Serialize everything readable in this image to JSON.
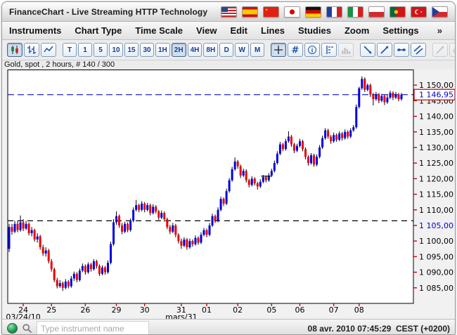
{
  "window": {
    "title": "FinanceChart - Live Streaming HTTP Technology"
  },
  "flags": [
    "usa",
    "spain",
    "china",
    "japan",
    "germany",
    "france",
    "italy",
    "poland",
    "portugal",
    "turkey",
    "czech"
  ],
  "menu": {
    "items": [
      "Instruments",
      "Chart Type",
      "Time Scale",
      "View",
      "Edit",
      "Lines",
      "Studies",
      "Zoom",
      "Settings"
    ],
    "overflow": "»"
  },
  "toolbar": {
    "chart_type_buttons": [
      {
        "name": "candlestick-chart-button",
        "icon": "candles",
        "state": "active"
      },
      {
        "name": "ohlc-chart-button",
        "icon": "ohlc",
        "state": "normal"
      },
      {
        "name": "line-chart-button",
        "icon": "linechart",
        "state": "normal"
      }
    ],
    "timeframe_buttons": [
      {
        "label": "T"
      },
      {
        "label": "1"
      },
      {
        "label": "5"
      },
      {
        "label": "10"
      },
      {
        "label": "15"
      },
      {
        "label": "30"
      },
      {
        "label": "1H"
      },
      {
        "label": "2H",
        "state": "active"
      },
      {
        "label": "4H"
      },
      {
        "label": "8H"
      },
      {
        "label": "D"
      },
      {
        "label": "W"
      },
      {
        "label": "M"
      }
    ],
    "tool_buttons": [
      {
        "name": "crosshair-button",
        "icon": "crosshair",
        "state": "active"
      },
      {
        "name": "grid-button",
        "icon": "grid",
        "state": "normal"
      },
      {
        "name": "info-button",
        "icon": "info",
        "state": "normal"
      },
      {
        "name": "price-levels-button",
        "icon": "levels",
        "state": "normal"
      },
      {
        "name": "volume-histogram-button",
        "icon": "volume",
        "state": "disabled"
      }
    ],
    "draw_buttons": [
      {
        "name": "draw-trendline-down-button",
        "icon": "trend-down",
        "state": "normal"
      },
      {
        "name": "draw-trendline-up-button",
        "icon": "trend-up",
        "state": "normal"
      },
      {
        "name": "draw-horizontal-line-button",
        "icon": "trend-horizontal",
        "state": "normal"
      },
      {
        "name": "draw-channel-button",
        "icon": "trend-channel",
        "state": "normal"
      }
    ],
    "edit_buttons": [
      {
        "name": "edit-line-button",
        "icon": "trend-up",
        "state": "disabled"
      },
      {
        "name": "eraser-button",
        "icon": "eraser",
        "state": "disabled"
      },
      {
        "name": "pin-button",
        "icon": "pin",
        "state": "normal"
      }
    ],
    "overflow": "»"
  },
  "chart": {
    "instrument_label": "Gold, spot , 2 hours, # 140 / 300"
  },
  "chart_data": {
    "type": "candlestick",
    "title": "Gold, spot , 2 hours, # 140 / 300",
    "ylim": [
      1080,
      1155
    ],
    "yticks": [
      {
        "value": 1150,
        "label": "1 150,00"
      },
      {
        "value": 1145,
        "label": "1 145,00"
      },
      {
        "value": 1140,
        "label": "1 140,00"
      },
      {
        "value": 1135,
        "label": "1 135,00"
      },
      {
        "value": 1130,
        "label": "1 130,00"
      },
      {
        "value": 1125,
        "label": "1 125,00"
      },
      {
        "value": 1120,
        "label": "1 120,00"
      },
      {
        "value": 1115,
        "label": "1 115,00"
      },
      {
        "value": 1110,
        "label": "1 110,00"
      },
      {
        "value": 1105,
        "label": "1 105,00",
        "highlight": true
      },
      {
        "value": 1100,
        "label": "1 100,00"
      },
      {
        "value": 1095,
        "label": "1 095,00"
      },
      {
        "value": 1090,
        "label": "1 090,00"
      },
      {
        "value": 1085,
        "label": "1 085,00"
      }
    ],
    "price_line": {
      "value": 1146.95,
      "label": "1 146,95"
    },
    "support_line": {
      "value": 1106.5
    },
    "marker": {
      "index": 91,
      "value": 1120.8
    },
    "x_labels": [
      {
        "label": "24",
        "index": 5
      },
      {
        "label": "25",
        "index": 15
      },
      {
        "label": "26",
        "index": 27
      },
      {
        "label": "29",
        "index": 38
      },
      {
        "label": "30",
        "index": 48
      },
      {
        "label": "31",
        "index": 61
      },
      {
        "label": "01",
        "index": 70
      },
      {
        "label": "02",
        "index": 81
      },
      {
        "label": "05",
        "index": 93
      },
      {
        "label": "06",
        "index": 103
      },
      {
        "label": "07",
        "index": 115
      },
      {
        "label": "08",
        "index": 124
      }
    ],
    "x_sublabels": [
      {
        "label": "03/24/10",
        "index": 5
      },
      {
        "label": "mars/31",
        "index": 61
      }
    ],
    "colors": {
      "up": "#0000e0",
      "down": "#ee0000",
      "wick": "#000000",
      "price_line": "#2222cc",
      "support_line": "#000000",
      "tick": "#cc0000"
    },
    "candles": [
      [
        1097.5,
        1105.5,
        1096.5,
        1104.5
      ],
      [
        1104.5,
        1105.5,
        1102.0,
        1103.0
      ],
      [
        1103.0,
        1106.5,
        1102.5,
        1105.5
      ],
      [
        1105.5,
        1106.5,
        1102.8,
        1103.5
      ],
      [
        1103.5,
        1108.2,
        1103.0,
        1106.0
      ],
      [
        1106.0,
        1107.0,
        1103.2,
        1104.0
      ],
      [
        1104.0,
        1106.5,
        1103.5,
        1105.5
      ],
      [
        1105.5,
        1106.0,
        1101.8,
        1102.5
      ],
      [
        1102.5,
        1104.5,
        1101.5,
        1103.5
      ],
      [
        1103.5,
        1104.0,
        1099.8,
        1100.5
      ],
      [
        1100.5,
        1102.5,
        1099.5,
        1101.5
      ],
      [
        1101.5,
        1102.0,
        1097.2,
        1098.0
      ],
      [
        1098.0,
        1098.8,
        1095.2,
        1096.0
      ],
      [
        1096.0,
        1098.0,
        1095.0,
        1097.0
      ],
      [
        1097.0,
        1097.5,
        1092.8,
        1093.5
      ],
      [
        1093.5,
        1094.2,
        1090.2,
        1091.0
      ],
      [
        1091.0,
        1091.5,
        1086.8,
        1087.5
      ],
      [
        1087.5,
        1088.2,
        1084.8,
        1085.5
      ],
      [
        1085.5,
        1087.5,
        1085.0,
        1086.5
      ],
      [
        1086.5,
        1087.0,
        1084.0,
        1085.0
      ],
      [
        1085.0,
        1087.8,
        1084.5,
        1087.0
      ],
      [
        1087.0,
        1087.5,
        1084.8,
        1085.5
      ],
      [
        1085.5,
        1088.8,
        1085.0,
        1088.0
      ],
      [
        1088.0,
        1090.2,
        1087.2,
        1089.5
      ],
      [
        1089.5,
        1090.0,
        1086.8,
        1087.5
      ],
      [
        1087.5,
        1091.2,
        1087.0,
        1090.5
      ],
      [
        1090.5,
        1092.8,
        1090.0,
        1092.0
      ],
      [
        1092.0,
        1092.5,
        1089.2,
        1090.0
      ],
      [
        1090.0,
        1093.2,
        1089.5,
        1092.5
      ],
      [
        1092.5,
        1093.0,
        1090.2,
        1091.0
      ],
      [
        1091.0,
        1094.2,
        1090.5,
        1093.5
      ],
      [
        1093.5,
        1094.0,
        1091.2,
        1092.0
      ],
      [
        1092.0,
        1092.5,
        1088.8,
        1089.5
      ],
      [
        1089.5,
        1092.2,
        1089.0,
        1091.5
      ],
      [
        1091.5,
        1092.0,
        1089.2,
        1090.0
      ],
      [
        1090.0,
        1093.8,
        1089.5,
        1093.0
      ],
      [
        1093.0,
        1099.8,
        1092.5,
        1099.0
      ],
      [
        1099.0,
        1107.0,
        1098.5,
        1106.0
      ],
      [
        1106.0,
        1109.5,
        1105.2,
        1108.0
      ],
      [
        1108.0,
        1108.5,
        1104.2,
        1105.0
      ],
      [
        1105.0,
        1105.8,
        1102.2,
        1103.0
      ],
      [
        1103.0,
        1106.2,
        1102.5,
        1105.5
      ],
      [
        1105.5,
        1106.0,
        1102.8,
        1103.5
      ],
      [
        1103.5,
        1107.2,
        1103.0,
        1106.5
      ],
      [
        1106.5,
        1110.8,
        1106.0,
        1110.0
      ],
      [
        1110.0,
        1113.2,
        1109.5,
        1111.5
      ],
      [
        1111.5,
        1112.0,
        1109.2,
        1110.0
      ],
      [
        1110.0,
        1112.8,
        1109.5,
        1112.0
      ],
      [
        1112.0,
        1112.5,
        1109.2,
        1110.0
      ],
      [
        1110.0,
        1112.2,
        1109.5,
        1111.5
      ],
      [
        1111.5,
        1112.0,
        1108.2,
        1109.0
      ],
      [
        1109.0,
        1111.8,
        1108.5,
        1111.0
      ],
      [
        1111.0,
        1111.5,
        1108.8,
        1109.5
      ],
      [
        1109.5,
        1110.0,
        1106.8,
        1107.5
      ],
      [
        1107.5,
        1109.8,
        1107.0,
        1109.0
      ],
      [
        1109.0,
        1109.5,
        1106.2,
        1107.0
      ],
      [
        1107.0,
        1107.5,
        1103.8,
        1104.5
      ],
      [
        1104.5,
        1105.2,
        1102.2,
        1103.0
      ],
      [
        1103.0,
        1105.8,
        1102.5,
        1105.0
      ],
      [
        1105.0,
        1105.5,
        1101.2,
        1102.0
      ],
      [
        1102.0,
        1102.5,
        1099.2,
        1100.0
      ],
      [
        1100.0,
        1100.8,
        1097.5,
        1098.5
      ],
      [
        1098.5,
        1101.2,
        1098.0,
        1100.5
      ],
      [
        1100.5,
        1101.0,
        1097.2,
        1098.0
      ],
      [
        1098.0,
        1100.8,
        1097.5,
        1100.0
      ],
      [
        1100.0,
        1100.5,
        1098.2,
        1099.0
      ],
      [
        1099.0,
        1101.8,
        1098.5,
        1101.0
      ],
      [
        1101.0,
        1101.5,
        1098.8,
        1099.5
      ],
      [
        1099.5,
        1102.8,
        1099.0,
        1102.0
      ],
      [
        1102.0,
        1104.2,
        1101.5,
        1103.5
      ],
      [
        1103.5,
        1104.0,
        1101.2,
        1102.0
      ],
      [
        1102.0,
        1105.8,
        1101.5,
        1105.0
      ],
      [
        1105.0,
        1108.8,
        1104.5,
        1108.0
      ],
      [
        1108.0,
        1108.5,
        1105.8,
        1106.5
      ],
      [
        1106.5,
        1110.8,
        1106.0,
        1110.0
      ],
      [
        1110.0,
        1114.2,
        1109.5,
        1113.5
      ],
      [
        1113.5,
        1114.0,
        1111.2,
        1112.0
      ],
      [
        1112.0,
        1116.8,
        1111.5,
        1116.0
      ],
      [
        1116.0,
        1120.2,
        1115.5,
        1119.5
      ],
      [
        1119.5,
        1123.8,
        1119.0,
        1123.0
      ],
      [
        1123.0,
        1126.8,
        1122.5,
        1125.5
      ],
      [
        1125.5,
        1126.0,
        1123.2,
        1124.0
      ],
      [
        1124.0,
        1124.5,
        1120.2,
        1121.0
      ],
      [
        1121.0,
        1123.2,
        1120.5,
        1122.5
      ],
      [
        1122.5,
        1123.0,
        1118.8,
        1119.5
      ],
      [
        1119.5,
        1120.0,
        1117.2,
        1118.0
      ],
      [
        1118.0,
        1120.8,
        1117.5,
        1120.0
      ],
      [
        1120.0,
        1120.5,
        1117.8,
        1118.5
      ],
      [
        1118.5,
        1119.0,
        1116.5,
        1117.5
      ],
      [
        1117.5,
        1119.8,
        1117.0,
        1119.0
      ],
      [
        1119.0,
        1121.2,
        1118.5,
        1120.5
      ],
      [
        1120.5,
        1121.0,
        1118.8,
        1119.5
      ],
      [
        1119.5,
        1121.8,
        1119.0,
        1121.0
      ],
      [
        1121.0,
        1123.2,
        1120.5,
        1122.5
      ],
      [
        1122.5,
        1125.8,
        1122.0,
        1125.0
      ],
      [
        1125.0,
        1128.8,
        1124.5,
        1128.0
      ],
      [
        1128.0,
        1131.8,
        1127.5,
        1131.0
      ],
      [
        1131.0,
        1131.5,
        1128.8,
        1129.5
      ],
      [
        1129.5,
        1132.8,
        1129.0,
        1132.0
      ],
      [
        1132.0,
        1135.2,
        1131.5,
        1133.5
      ],
      [
        1133.5,
        1134.0,
        1130.2,
        1131.0
      ],
      [
        1131.0,
        1131.5,
        1128.2,
        1129.0
      ],
      [
        1129.0,
        1131.2,
        1128.5,
        1130.5
      ],
      [
        1130.5,
        1132.8,
        1130.0,
        1132.0
      ],
      [
        1132.0,
        1132.5,
        1128.8,
        1129.5
      ],
      [
        1129.5,
        1130.0,
        1126.2,
        1127.0
      ],
      [
        1127.0,
        1127.5,
        1124.2,
        1125.0
      ],
      [
        1125.0,
        1128.2,
        1124.5,
        1127.5
      ],
      [
        1127.5,
        1128.0,
        1123.8,
        1124.5
      ],
      [
        1124.5,
        1127.8,
        1124.0,
        1127.0
      ],
      [
        1127.0,
        1130.8,
        1126.5,
        1130.0
      ],
      [
        1130.0,
        1133.8,
        1129.5,
        1133.0
      ],
      [
        1133.0,
        1136.2,
        1132.5,
        1135.5
      ],
      [
        1135.5,
        1136.0,
        1132.8,
        1133.5
      ],
      [
        1133.5,
        1134.0,
        1131.2,
        1132.0
      ],
      [
        1132.0,
        1134.8,
        1131.5,
        1134.0
      ],
      [
        1134.0,
        1134.5,
        1131.8,
        1132.5
      ],
      [
        1132.5,
        1135.2,
        1132.0,
        1134.5
      ],
      [
        1134.5,
        1135.0,
        1132.2,
        1133.0
      ],
      [
        1133.0,
        1135.8,
        1132.5,
        1135.0
      ],
      [
        1135.0,
        1135.5,
        1132.8,
        1133.5
      ],
      [
        1133.5,
        1136.2,
        1133.0,
        1135.5
      ],
      [
        1135.5,
        1137.2,
        1135.0,
        1136.5
      ],
      [
        1136.5,
        1143.8,
        1136.0,
        1143.0
      ],
      [
        1143.0,
        1149.5,
        1142.5,
        1149.0
      ],
      [
        1149.0,
        1152.8,
        1148.5,
        1152.0
      ],
      [
        1152.0,
        1152.5,
        1147.8,
        1148.5
      ],
      [
        1148.5,
        1150.5,
        1148.0,
        1150.0
      ],
      [
        1150.0,
        1150.5,
        1146.2,
        1147.0
      ],
      [
        1147.0,
        1147.5,
        1143.5,
        1145.5
      ],
      [
        1145.5,
        1147.8,
        1145.0,
        1147.0
      ],
      [
        1147.0,
        1147.5,
        1144.2,
        1145.0
      ],
      [
        1145.0,
        1147.2,
        1144.5,
        1146.5
      ],
      [
        1146.5,
        1147.0,
        1143.6,
        1144.5
      ],
      [
        1144.5,
        1146.8,
        1144.0,
        1146.0
      ],
      [
        1146.0,
        1148.2,
        1145.5,
        1147.5
      ],
      [
        1147.5,
        1148.0,
        1145.2,
        1146.0
      ],
      [
        1146.0,
        1147.8,
        1145.5,
        1147.0
      ],
      [
        1147.0,
        1147.5,
        1144.8,
        1145.5
      ],
      [
        1145.5,
        1147.5,
        1145.0,
        1146.95
      ]
    ]
  },
  "statusbar": {
    "search_placeholder": "Type instrument name",
    "datetime": "08 avr. 2010 07:45:29  CEST (+0200)"
  }
}
